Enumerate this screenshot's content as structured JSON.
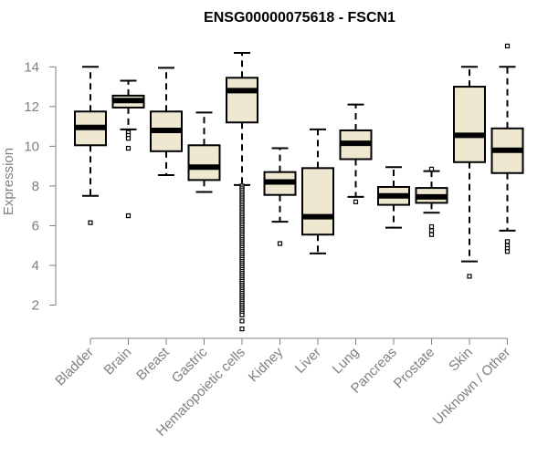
{
  "chart_data": {
    "type": "boxplot",
    "title": "ENSG00000075618 - FSCN1",
    "xlabel": "",
    "ylabel": "Expression",
    "ylim": [
      0.6,
      15.3
    ],
    "yticks": [
      2,
      4,
      6,
      8,
      10,
      12,
      14
    ],
    "categories": [
      "Bladder",
      "Brain",
      "Breast",
      "Gastric",
      "Hematopoietic cells",
      "Kidney",
      "Liver",
      "Lung",
      "Pancreas",
      "Prostate",
      "Skin",
      "Unknown / Other"
    ],
    "boxes": [
      {
        "category": "Bladder",
        "whisker_low": 7.5,
        "q1": 10.05,
        "median": 10.95,
        "q3": 11.75,
        "whisker_high": 14.0,
        "outliers": [
          6.15
        ]
      },
      {
        "category": "Brain",
        "whisker_low": 10.85,
        "q1": 11.95,
        "median": 12.3,
        "q3": 12.55,
        "whisker_high": 13.3,
        "outliers": [
          10.7,
          10.55,
          10.4,
          9.9,
          6.5
        ]
      },
      {
        "category": "Breast",
        "whisker_low": 8.55,
        "q1": 9.75,
        "median": 10.8,
        "q3": 11.75,
        "whisker_high": 13.95,
        "outliers": []
      },
      {
        "category": "Gastric",
        "whisker_low": 7.7,
        "q1": 8.3,
        "median": 8.95,
        "q3": 10.05,
        "whisker_high": 11.7,
        "outliers": []
      },
      {
        "category": "Hematopoietic cells",
        "whisker_low": 8.05,
        "q1": 11.2,
        "median": 12.8,
        "q3": 13.45,
        "whisker_high": 14.7,
        "outliers": [
          8.0,
          7.9,
          7.8,
          7.7,
          7.6,
          7.5,
          7.4,
          7.3,
          7.2,
          7.1,
          7.0,
          6.9,
          6.8,
          6.7,
          6.6,
          6.5,
          6.4,
          6.3,
          6.2,
          6.1,
          6.0,
          5.9,
          5.8,
          5.7,
          5.6,
          5.5,
          5.4,
          5.3,
          5.2,
          5.1,
          5.0,
          4.9,
          4.8,
          4.7,
          4.6,
          4.5,
          4.4,
          4.3,
          4.2,
          4.1,
          4.0,
          3.9,
          3.8,
          3.7,
          3.6,
          3.5,
          3.4,
          3.3,
          3.2,
          3.1,
          3.0,
          2.9,
          2.8,
          2.7,
          2.6,
          2.5,
          2.4,
          2.3,
          2.2,
          2.1,
          2.0,
          1.9,
          1.8,
          1.7,
          1.6,
          1.5,
          1.2,
          0.8
        ]
      },
      {
        "category": "Kidney",
        "whisker_low": 6.2,
        "q1": 7.55,
        "median": 8.2,
        "q3": 8.7,
        "whisker_high": 9.9,
        "outliers": [
          5.1
        ]
      },
      {
        "category": "Liver",
        "whisker_low": 4.6,
        "q1": 5.55,
        "median": 6.45,
        "q3": 8.9,
        "whisker_high": 10.85,
        "outliers": []
      },
      {
        "category": "Lung",
        "whisker_low": 7.45,
        "q1": 9.35,
        "median": 10.15,
        "q3": 10.8,
        "whisker_high": 12.1,
        "outliers": [
          7.2
        ]
      },
      {
        "category": "Pancreas",
        "whisker_low": 5.9,
        "q1": 7.05,
        "median": 7.5,
        "q3": 7.95,
        "whisker_high": 8.95,
        "outliers": []
      },
      {
        "category": "Prostate",
        "whisker_low": 6.65,
        "q1": 7.15,
        "median": 7.45,
        "q3": 7.9,
        "whisker_high": 8.75,
        "outliers": [
          8.85,
          5.95,
          5.75,
          5.55
        ]
      },
      {
        "category": "Skin",
        "whisker_low": 4.2,
        "q1": 9.2,
        "median": 10.55,
        "q3": 13.0,
        "whisker_high": 14.0,
        "outliers": [
          3.45
        ]
      },
      {
        "category": "Unknown / Other",
        "whisker_low": 5.75,
        "q1": 8.65,
        "median": 9.8,
        "q3": 10.9,
        "whisker_high": 14.0,
        "outliers": [
          15.05,
          5.2,
          5.0,
          4.85,
          4.7
        ]
      }
    ],
    "box_fill": "#efe8d0",
    "box_stroke": "#000000",
    "axis_color": "#808080",
    "grid": false,
    "legend": "none"
  }
}
